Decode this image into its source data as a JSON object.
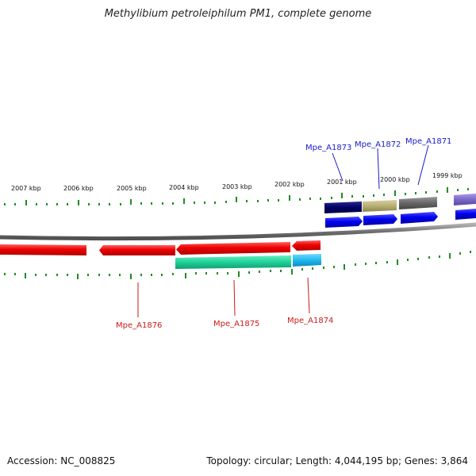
{
  "title": "Methylibium petroleiphilum PM1, complete genome",
  "footer": {
    "accession": "Accession: NC_008825",
    "summary": "Topology: circular; Length: 4,044,195 bp; Genes: 3,864"
  },
  "scale_labels": [
    "2007 kbp",
    "2006 kbp",
    "2005 kbp",
    "2004 kbp",
    "2003 kbp",
    "2002 kbp",
    "2001 kbp",
    "2000 kbp",
    "1999 kbp"
  ],
  "gene_labels_top": [
    "Mpe_A1873",
    "Mpe_A1872",
    "Mpe_A1871"
  ],
  "gene_labels_bottom": [
    "Mpe_A1876",
    "Mpe_A1875",
    "Mpe_A1874"
  ],
  "colors": {
    "backbone": "#808080",
    "tick": "#228b22",
    "forward_gene": "#0000ee",
    "reverse_gene": "#ee0000",
    "label_blue": "#1a1acc",
    "label_red": "#cc1a1a",
    "feature_navy": "#000066",
    "feature_khaki": "#b8b074",
    "feature_gray": "#666666",
    "feature_purple": "#7b68c8",
    "feature_green": "#20d098",
    "feature_cyan": "#20b8ee"
  }
}
